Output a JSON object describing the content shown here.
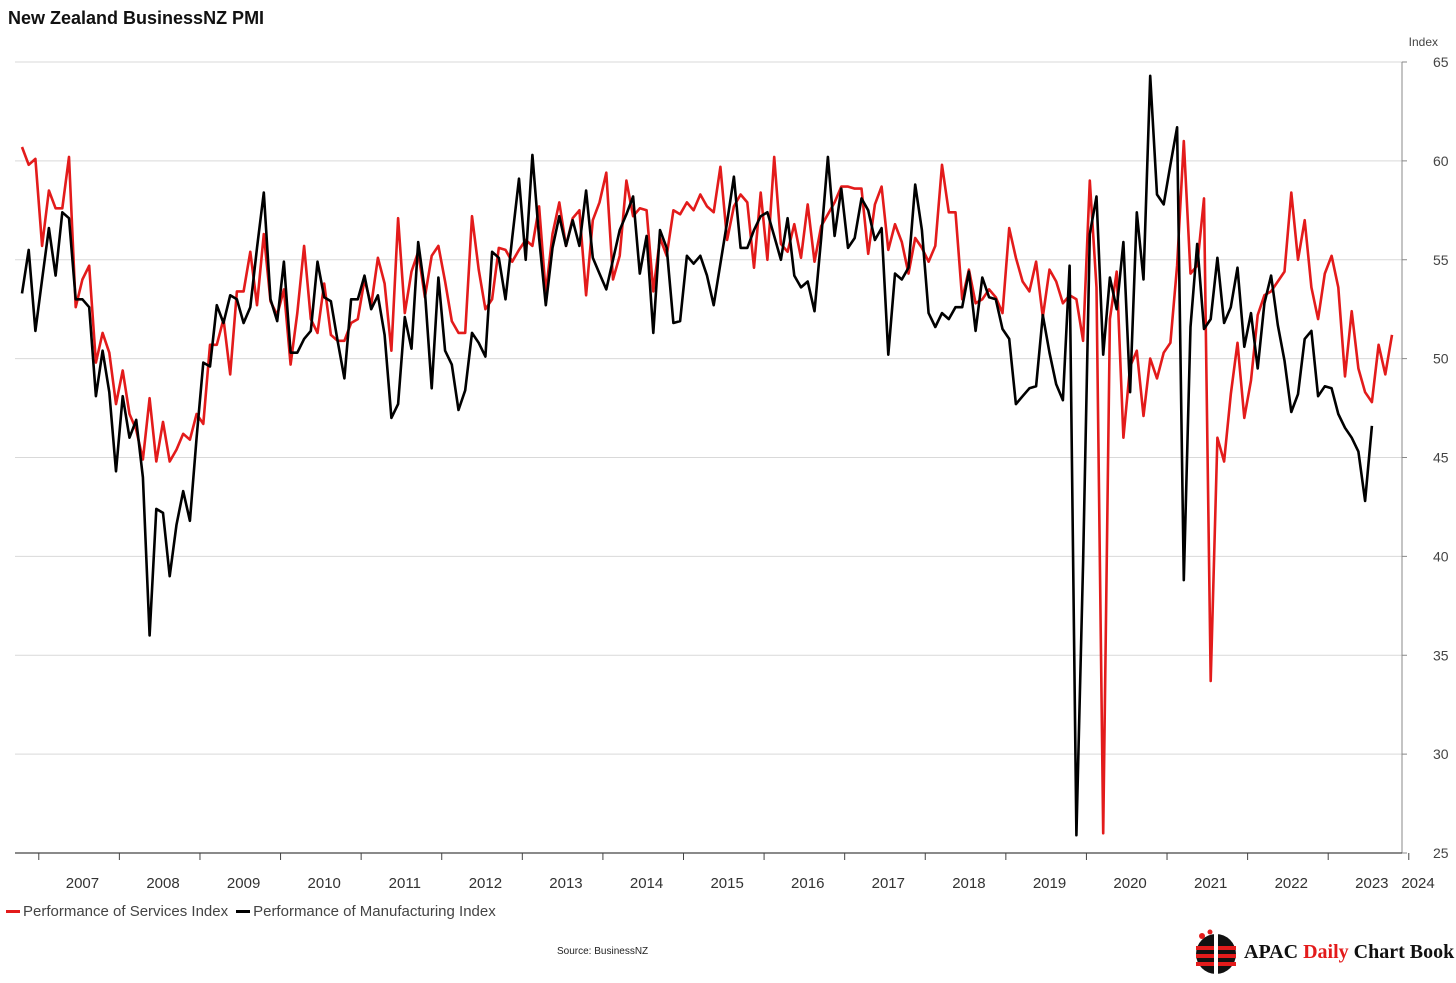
{
  "title": "New Zealand BusinessNZ PMI",
  "source": "Source: BusinessNZ",
  "brand": {
    "part1": "APAC ",
    "part2": "Daily",
    "part3": " Chart Book",
    "logo": "globe-logo"
  },
  "chart_data": {
    "type": "line",
    "y_unit_label": "Index",
    "ylim": [
      25,
      65
    ],
    "yticks": [
      25,
      30,
      35,
      40,
      45,
      50,
      55,
      60,
      65
    ],
    "x_ticks": [
      "2007",
      "2008",
      "2009",
      "2010",
      "2011",
      "2012",
      "2013",
      "2014",
      "2015",
      "2016",
      "2017",
      "2018",
      "2019",
      "2020",
      "2021",
      "2022",
      "2023",
      "2024"
    ],
    "x_start": "2006-10",
    "grid": true,
    "legend_position": "bottom-left",
    "series": [
      {
        "name": "Performance of Services Index",
        "color": "#e31b1b",
        "values": [
          60.7,
          59.8,
          60.1,
          55.7,
          58.5,
          57.6,
          57.6,
          60.2,
          52.6,
          54.0,
          54.7,
          49.8,
          51.3,
          50.3,
          47.7,
          49.4,
          47.2,
          46.4,
          44.9,
          48.0,
          44.8,
          46.8,
          44.8,
          45.4,
          46.2,
          45.9,
          47.2,
          46.7,
          50.7,
          50.7,
          52.0,
          49.2,
          53.4,
          53.4,
          55.4,
          52.7,
          56.3,
          52.9,
          52.2,
          53.5,
          49.7,
          52.3,
          55.7,
          52.0,
          51.3,
          53.8,
          51.2,
          50.9,
          50.9,
          51.8,
          52.0,
          54.0,
          52.7,
          55.1,
          53.8,
          50.4,
          57.1,
          52.3,
          54.4,
          55.4,
          53.1,
          55.2,
          55.7,
          53.9,
          51.9,
          51.3,
          51.3,
          57.2,
          54.5,
          52.5,
          53.0,
          55.6,
          55.5,
          54.9,
          55.5,
          56.0,
          55.7,
          57.7,
          53.3,
          56.3,
          57.9,
          55.7,
          57.1,
          57.5,
          53.2,
          57.0,
          57.9,
          59.4,
          54.0,
          55.2,
          59.0,
          57.2,
          57.6,
          57.5,
          53.4,
          56.1,
          55.2,
          57.5,
          57.3,
          57.9,
          57.5,
          58.3,
          57.7,
          57.4,
          59.7,
          56.0,
          57.7,
          58.3,
          57.9,
          54.6,
          58.4,
          55.0,
          60.2,
          55.8,
          55.4,
          56.8,
          55.1,
          57.8,
          54.9,
          56.7,
          57.3,
          57.9,
          58.7,
          58.7,
          58.6,
          58.6,
          55.3,
          57.8,
          58.7,
          55.5,
          56.8,
          55.9,
          54.3,
          56.1,
          55.6,
          54.9,
          55.7,
          59.8,
          57.4,
          57.4,
          53.0,
          54.5,
          52.8,
          53.0,
          53.5,
          53.1,
          52.3,
          56.6,
          55.1,
          53.9,
          53.4,
          54.9,
          52.1,
          54.5,
          53.9,
          52.8,
          53.2,
          53.0,
          50.9,
          59.0,
          53.6,
          26.0,
          52.0,
          54.4,
          46.0,
          49.6,
          50.4,
          47.1,
          50.0,
          49.0,
          50.3,
          50.8,
          54.7,
          61.0,
          54.3,
          54.7,
          58.1,
          33.7,
          46.0,
          44.8,
          48.2,
          50.8,
          47.0,
          48.9,
          52.2,
          53.2,
          53.4,
          53.9,
          54.4,
          58.4,
          55.0,
          57.0,
          53.6,
          52.0,
          54.3,
          55.2,
          53.6,
          49.1,
          52.4,
          49.5,
          48.3,
          47.8,
          50.7,
          49.2,
          51.2
        ]
      },
      {
        "name": "Performance of Manufacturing Index",
        "color": "#000000",
        "values": [
          53.3,
          55.5,
          51.4,
          54.0,
          56.6,
          54.2,
          57.4,
          57.1,
          53.0,
          53.0,
          52.6,
          48.1,
          50.4,
          48.3,
          44.3,
          48.1,
          46.0,
          46.9,
          44.0,
          36.0,
          42.4,
          42.2,
          39.0,
          41.6,
          43.3,
          41.8,
          46.0,
          49.8,
          49.6,
          52.7,
          51.8,
          53.2,
          53.0,
          51.8,
          52.6,
          55.6,
          58.4,
          53.0,
          51.9,
          54.9,
          50.3,
          50.3,
          51.0,
          51.4,
          54.9,
          53.1,
          52.9,
          50.9,
          49.0,
          53.0,
          53.0,
          54.2,
          52.5,
          53.2,
          51.2,
          47.0,
          47.7,
          52.1,
          50.5,
          55.9,
          53.4,
          48.5,
          54.1,
          50.4,
          49.7,
          47.4,
          48.4,
          51.3,
          50.8,
          50.1,
          55.4,
          55.1,
          53.0,
          56.1,
          59.1,
          55.0,
          60.3,
          56.1,
          52.7,
          55.6,
          57.2,
          55.7,
          57.0,
          55.7,
          58.5,
          55.1,
          54.3,
          53.5,
          55.0,
          56.5,
          57.3,
          58.2,
          54.3,
          56.2,
          51.3,
          56.5,
          55.6,
          51.8,
          51.9,
          55.2,
          54.8,
          55.2,
          54.2,
          52.7,
          54.8,
          56.9,
          59.2,
          55.6,
          55.6,
          56.5,
          57.2,
          57.4,
          56.2,
          55.0,
          57.1,
          54.2,
          53.6,
          53.9,
          52.4,
          56.1,
          60.2,
          56.2,
          58.6,
          55.6,
          56.1,
          58.1,
          57.5,
          56.0,
          56.6,
          50.2,
          54.3,
          54.0,
          54.6,
          58.8,
          56.5,
          52.3,
          51.6,
          52.3,
          52.0,
          52.6,
          52.6,
          54.4,
          51.4,
          54.1,
          53.1,
          53.0,
          51.5,
          51.0,
          47.7,
          48.1,
          48.5,
          48.6,
          52.2,
          50.3,
          48.7,
          47.9,
          54.7,
          25.9,
          39.7,
          56.3,
          58.2,
          50.2,
          54.1,
          52.5,
          55.9,
          48.3,
          57.4,
          54.0,
          64.3,
          58.3,
          57.8,
          59.8,
          61.7,
          38.8,
          51.6,
          55.8,
          51.5,
          52.0,
          55.1,
          51.8,
          52.6,
          54.6,
          50.6,
          52.3,
          49.5,
          52.8,
          54.2,
          51.7,
          49.9,
          47.3,
          48.2,
          51.0,
          51.4,
          48.1,
          48.6,
          48.5,
          47.2,
          46.5,
          46.0,
          45.3,
          42.8,
          46.6
        ]
      }
    ]
  }
}
